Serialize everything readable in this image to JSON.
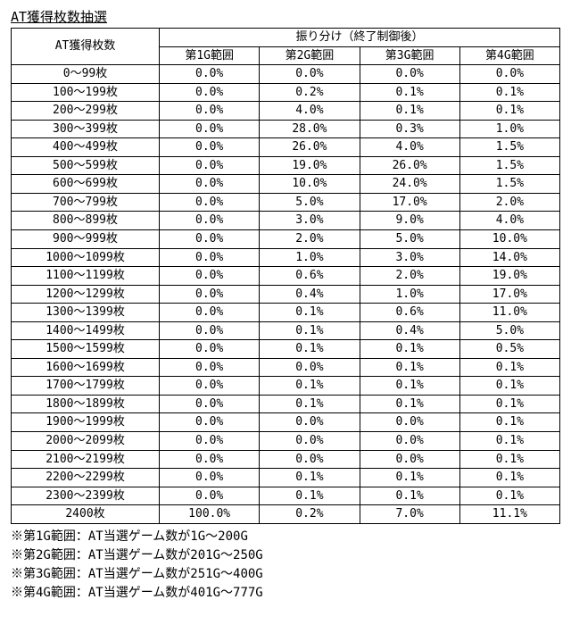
{
  "title": "AT獲得枚数抽選",
  "table": {
    "header_rowspan": "AT獲得枚数",
    "header_group": "振り分け（終了制御後）",
    "subheaders": [
      "第1G範囲",
      "第2G範囲",
      "第3G範囲",
      "第4G範囲"
    ],
    "rows": [
      {
        "label": "0～99枚",
        "c1": "0.0%",
        "c2": "0.0%",
        "c3": "0.0%",
        "c4": "0.0%"
      },
      {
        "label": "100～199枚",
        "c1": "0.0%",
        "c2": "0.2%",
        "c3": "0.1%",
        "c4": "0.1%"
      },
      {
        "label": "200～299枚",
        "c1": "0.0%",
        "c2": "4.0%",
        "c3": "0.1%",
        "c4": "0.1%"
      },
      {
        "label": "300～399枚",
        "c1": "0.0%",
        "c2": "28.0%",
        "c3": "0.3%",
        "c4": "1.0%"
      },
      {
        "label": "400～499枚",
        "c1": "0.0%",
        "c2": "26.0%",
        "c3": "4.0%",
        "c4": "1.5%"
      },
      {
        "label": "500～599枚",
        "c1": "0.0%",
        "c2": "19.0%",
        "c3": "26.0%",
        "c4": "1.5%"
      },
      {
        "label": "600～699枚",
        "c1": "0.0%",
        "c2": "10.0%",
        "c3": "24.0%",
        "c4": "1.5%"
      },
      {
        "label": "700～799枚",
        "c1": "0.0%",
        "c2": "5.0%",
        "c3": "17.0%",
        "c4": "2.0%"
      },
      {
        "label": "800～899枚",
        "c1": "0.0%",
        "c2": "3.0%",
        "c3": "9.0%",
        "c4": "4.0%"
      },
      {
        "label": "900～999枚",
        "c1": "0.0%",
        "c2": "2.0%",
        "c3": "5.0%",
        "c4": "10.0%"
      },
      {
        "label": "1000～1099枚",
        "c1": "0.0%",
        "c2": "1.0%",
        "c3": "3.0%",
        "c4": "14.0%"
      },
      {
        "label": "1100～1199枚",
        "c1": "0.0%",
        "c2": "0.6%",
        "c3": "2.0%",
        "c4": "19.0%"
      },
      {
        "label": "1200～1299枚",
        "c1": "0.0%",
        "c2": "0.4%",
        "c3": "1.0%",
        "c4": "17.0%"
      },
      {
        "label": "1300～1399枚",
        "c1": "0.0%",
        "c2": "0.1%",
        "c3": "0.6%",
        "c4": "11.0%"
      },
      {
        "label": "1400～1499枚",
        "c1": "0.0%",
        "c2": "0.1%",
        "c3": "0.4%",
        "c4": "5.0%"
      },
      {
        "label": "1500～1599枚",
        "c1": "0.0%",
        "c2": "0.1%",
        "c3": "0.1%",
        "c4": "0.5%"
      },
      {
        "label": "1600～1699枚",
        "c1": "0.0%",
        "c2": "0.0%",
        "c3": "0.1%",
        "c4": "0.1%"
      },
      {
        "label": "1700～1799枚",
        "c1": "0.0%",
        "c2": "0.1%",
        "c3": "0.1%",
        "c4": "0.1%"
      },
      {
        "label": "1800～1899枚",
        "c1": "0.0%",
        "c2": "0.1%",
        "c3": "0.1%",
        "c4": "0.1%"
      },
      {
        "label": "1900～1999枚",
        "c1": "0.0%",
        "c2": "0.0%",
        "c3": "0.0%",
        "c4": "0.1%"
      },
      {
        "label": "2000～2099枚",
        "c1": "0.0%",
        "c2": "0.0%",
        "c3": "0.0%",
        "c4": "0.1%"
      },
      {
        "label": "2100～2199枚",
        "c1": "0.0%",
        "c2": "0.0%",
        "c3": "0.0%",
        "c4": "0.1%"
      },
      {
        "label": "2200～2299枚",
        "c1": "0.0%",
        "c2": "0.1%",
        "c3": "0.1%",
        "c4": "0.1%"
      },
      {
        "label": "2300～2399枚",
        "c1": "0.0%",
        "c2": "0.1%",
        "c3": "0.1%",
        "c4": "0.1%"
      },
      {
        "label": "2400枚",
        "c1": "100.0%",
        "c2": "0.2%",
        "c3": "7.0%",
        "c4": "11.1%"
      }
    ]
  },
  "notes": [
    "※第1G範囲：AT当選ゲーム数が1G～200G",
    "※第2G範囲：AT当選ゲーム数が201G～250G",
    "※第3G範囲：AT当選ゲーム数が251G～400G",
    "※第4G範囲：AT当選ゲーム数が401G～777G"
  ],
  "style": {
    "font_size_title": 15,
    "font_size_cell": 13,
    "font_size_notes": 14,
    "border_color": "#000000",
    "background_color": "#ffffff",
    "text_color": "#000000"
  }
}
